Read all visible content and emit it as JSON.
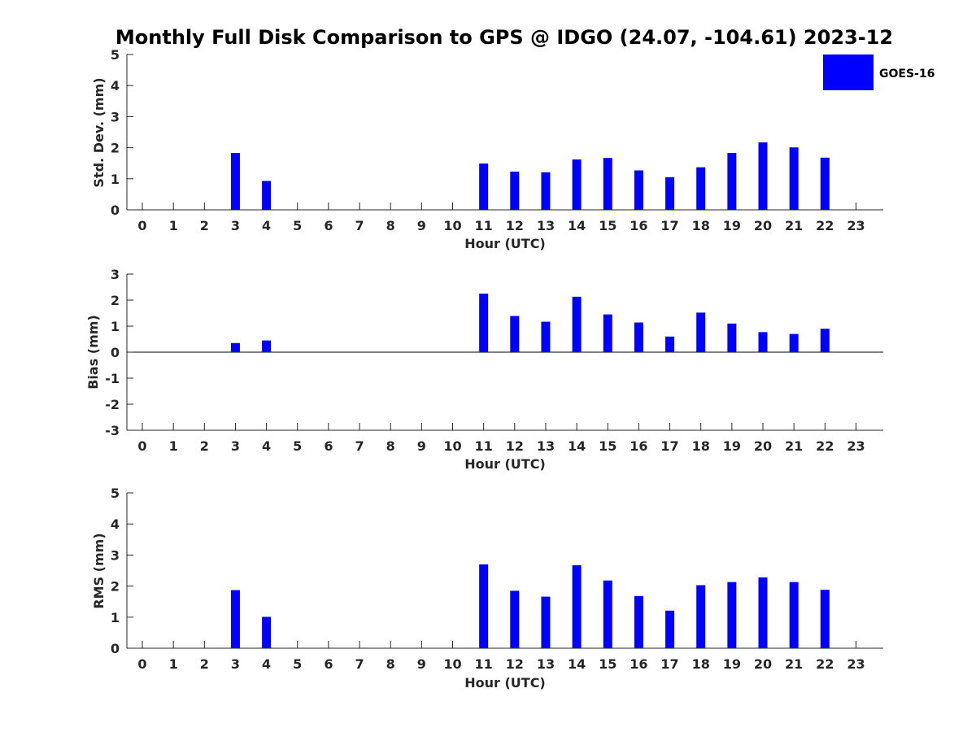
{
  "title": "Monthly Full Disk Comparison to GPS @ IDGO (24.07, -104.61) 2023-12",
  "legend": {
    "label": "GOES-16",
    "color": "#0000ff"
  },
  "chart_data": [
    {
      "type": "bar",
      "ylabel": "Std. Dev. (mm)",
      "xlabel": "Hour (UTC)",
      "categories": [
        "0",
        "1",
        "2",
        "3",
        "4",
        "5",
        "6",
        "7",
        "8",
        "9",
        "10",
        "11",
        "12",
        "13",
        "14",
        "15",
        "16",
        "17",
        "18",
        "19",
        "20",
        "21",
        "22",
        "23"
      ],
      "x": [
        0,
        1,
        2,
        3,
        4,
        5,
        6,
        7,
        8,
        9,
        10,
        11,
        12,
        13,
        14,
        15,
        16,
        17,
        18,
        19,
        20,
        21,
        22,
        23
      ],
      "ylim": [
        0,
        5
      ],
      "yticks": [
        0,
        1,
        2,
        3,
        4,
        5
      ],
      "series": [
        {
          "name": "GOES-16",
          "color": "#0000ff",
          "values": [
            null,
            null,
            null,
            1.83,
            0.93,
            null,
            null,
            null,
            null,
            null,
            null,
            1.49,
            1.23,
            1.21,
            1.62,
            1.67,
            1.27,
            1.05,
            1.37,
            1.83,
            2.17,
            2.01,
            1.68,
            null
          ]
        }
      ]
    },
    {
      "type": "bar",
      "ylabel": "Bias (mm)",
      "xlabel": "Hour (UTC)",
      "categories": [
        "0",
        "1",
        "2",
        "3",
        "4",
        "5",
        "6",
        "7",
        "8",
        "9",
        "10",
        "11",
        "12",
        "13",
        "14",
        "15",
        "16",
        "17",
        "18",
        "19",
        "20",
        "21",
        "22",
        "23"
      ],
      "x": [
        0,
        1,
        2,
        3,
        4,
        5,
        6,
        7,
        8,
        9,
        10,
        11,
        12,
        13,
        14,
        15,
        16,
        17,
        18,
        19,
        20,
        21,
        22,
        23
      ],
      "ylim": [
        -3,
        3
      ],
      "yticks": [
        -3,
        -2,
        -1,
        0,
        1,
        2,
        3
      ],
      "series": [
        {
          "name": "GOES-16",
          "color": "#0000ff",
          "values": [
            null,
            null,
            null,
            0.35,
            0.45,
            null,
            null,
            null,
            null,
            null,
            null,
            2.25,
            1.39,
            1.17,
            2.13,
            1.45,
            1.14,
            0.6,
            1.52,
            1.1,
            0.77,
            0.7,
            0.9,
            null
          ]
        }
      ]
    },
    {
      "type": "bar",
      "ylabel": "RMS (mm)",
      "xlabel": "Hour (UTC)",
      "categories": [
        "0",
        "1",
        "2",
        "3",
        "4",
        "5",
        "6",
        "7",
        "8",
        "9",
        "10",
        "11",
        "12",
        "13",
        "14",
        "15",
        "16",
        "17",
        "18",
        "19",
        "20",
        "21",
        "22",
        "23"
      ],
      "x": [
        0,
        1,
        2,
        3,
        4,
        5,
        6,
        7,
        8,
        9,
        10,
        11,
        12,
        13,
        14,
        15,
        16,
        17,
        18,
        19,
        20,
        21,
        22,
        23
      ],
      "ylim": [
        0,
        5
      ],
      "yticks": [
        0,
        1,
        2,
        3,
        4,
        5
      ],
      "series": [
        {
          "name": "GOES-16",
          "color": "#0000ff",
          "values": [
            null,
            null,
            null,
            1.87,
            1.01,
            null,
            null,
            null,
            null,
            null,
            null,
            2.7,
            1.85,
            1.66,
            2.67,
            2.18,
            1.68,
            1.21,
            2.03,
            2.13,
            2.28,
            2.13,
            1.88,
            null
          ]
        }
      ]
    }
  ]
}
